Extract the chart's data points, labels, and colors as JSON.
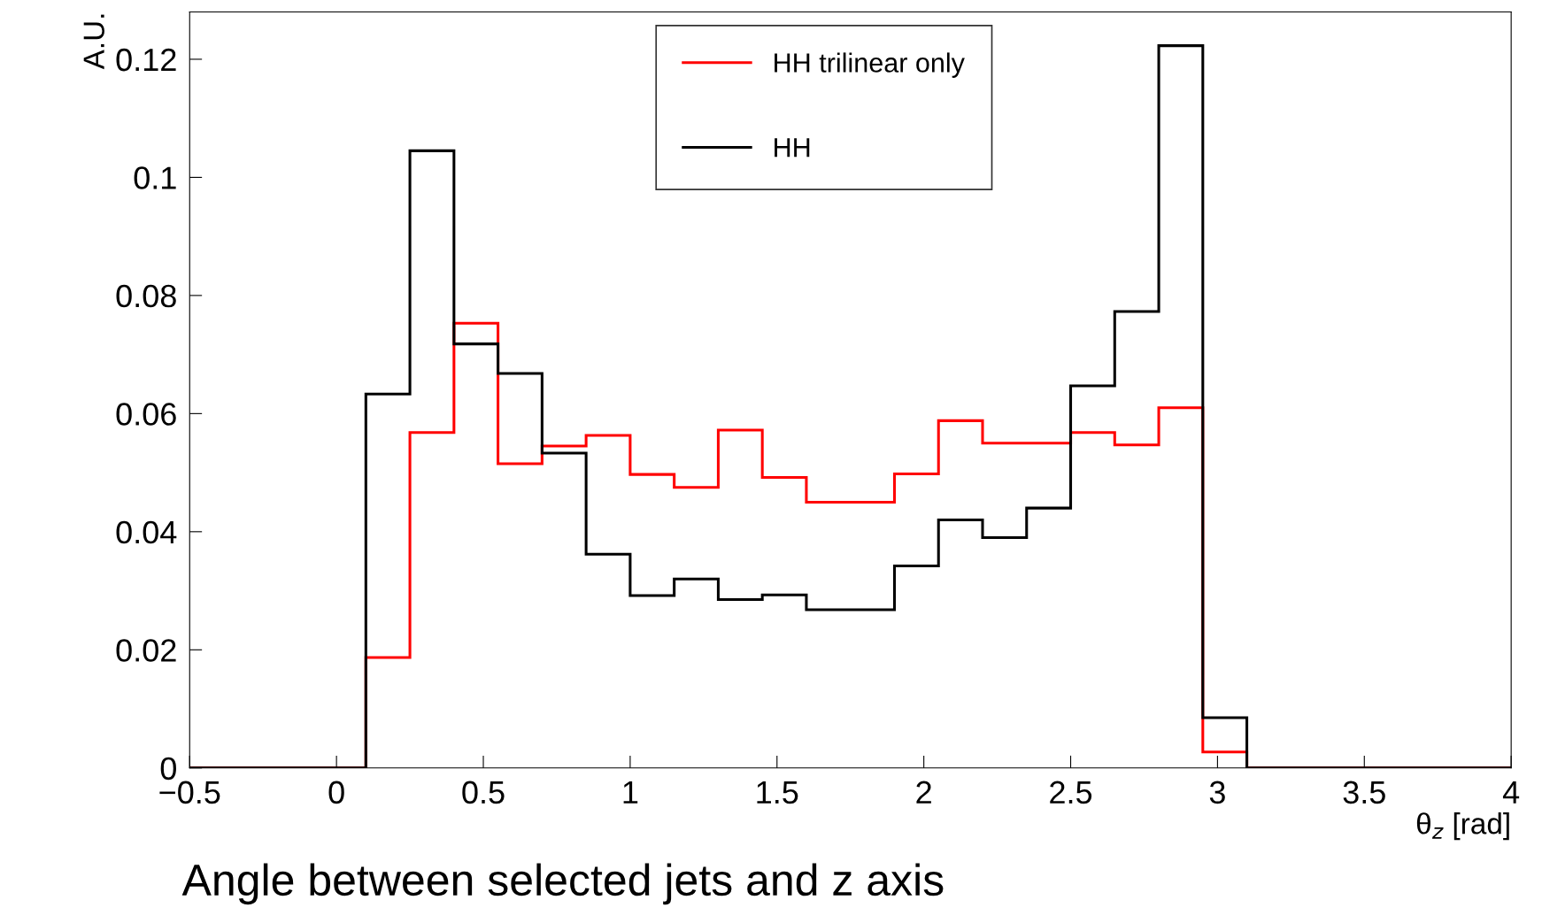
{
  "chart_data": {
    "type": "histogram",
    "title": "Angle between selected jets and z axis",
    "xlabel": "θ$_{z}$ [rad]",
    "ylabel": "A.U.",
    "bins": [
      -0.5,
      -0.35,
      -0.2,
      -0.05,
      0.1,
      0.25,
      0.4,
      0.55,
      0.7,
      0.85,
      1.0,
      1.15,
      1.3,
      1.45,
      1.6,
      1.75,
      1.9,
      2.05,
      2.2,
      2.35,
      2.5,
      2.65,
      2.8,
      2.95,
      3.1,
      3.25,
      3.4,
      3.55,
      3.7,
      3.85,
      4.0
    ],
    "series": [
      {
        "name": "HH trilinear only",
        "color": "#ff0000",
        "values": [
          0,
          0,
          0,
          0,
          0.0187,
          0.0568,
          0.0753,
          0.0515,
          0.0545,
          0.0563,
          0.0497,
          0.0475,
          0.0572,
          0.0492,
          0.045,
          0.045,
          0.0498,
          0.0588,
          0.055,
          0.055,
          0.0568,
          0.0547,
          0.061,
          0.0027,
          0,
          0,
          0,
          0,
          0,
          0
        ]
      },
      {
        "name": "HH",
        "color": "#000000",
        "values": [
          0,
          0,
          0,
          0,
          0.0633,
          0.1045,
          0.0718,
          0.0668,
          0.0533,
          0.0362,
          0.0292,
          0.032,
          0.0285,
          0.0293,
          0.0268,
          0.0268,
          0.0342,
          0.042,
          0.039,
          0.044,
          0.0647,
          0.0773,
          0.1223,
          0.0085,
          0,
          0,
          0,
          0,
          0,
          0
        ]
      }
    ],
    "xlim": [
      -0.5,
      4
    ],
    "ylim": [
      0,
      0.128
    ],
    "xticks": [
      {
        "value": -0.5,
        "label": "−0.5"
      },
      0,
      0.5,
      1,
      1.5,
      2,
      2.5,
      3,
      3.5,
      4
    ],
    "yticks": [
      0,
      0.02,
      0.04,
      0.06,
      0.08,
      0.1,
      0.12
    ],
    "legend": "top",
    "grid": false
  }
}
